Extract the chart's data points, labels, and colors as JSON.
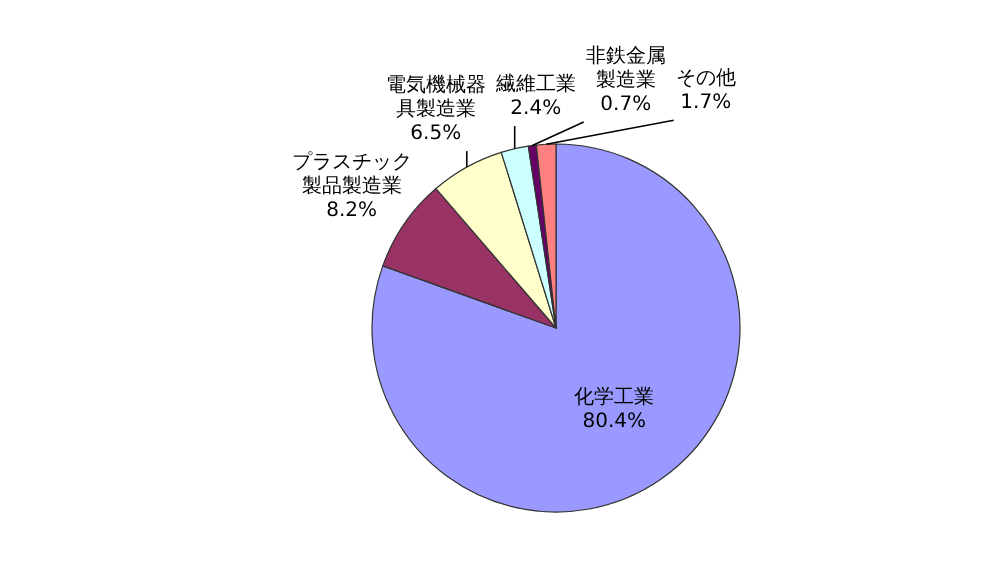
{
  "chart_data": {
    "type": "pie",
    "categories": [
      "化学工業",
      "プラスチック製品製造業",
      "電気機械器具製造業",
      "繊維工業",
      "非鉄金属製造業",
      "その他"
    ],
    "values": [
      80.4,
      8.2,
      6.5,
      2.4,
      0.7,
      1.7
    ],
    "value_labels": [
      "80.4%",
      "8.2%",
      "6.5%",
      "2.4%",
      "0.7%",
      "1.7%"
    ],
    "colors": [
      "#9999ff",
      "#993366",
      "#ffffcc",
      "#ccffff",
      "#660066",
      "#ff8080"
    ],
    "legend": false
  }
}
